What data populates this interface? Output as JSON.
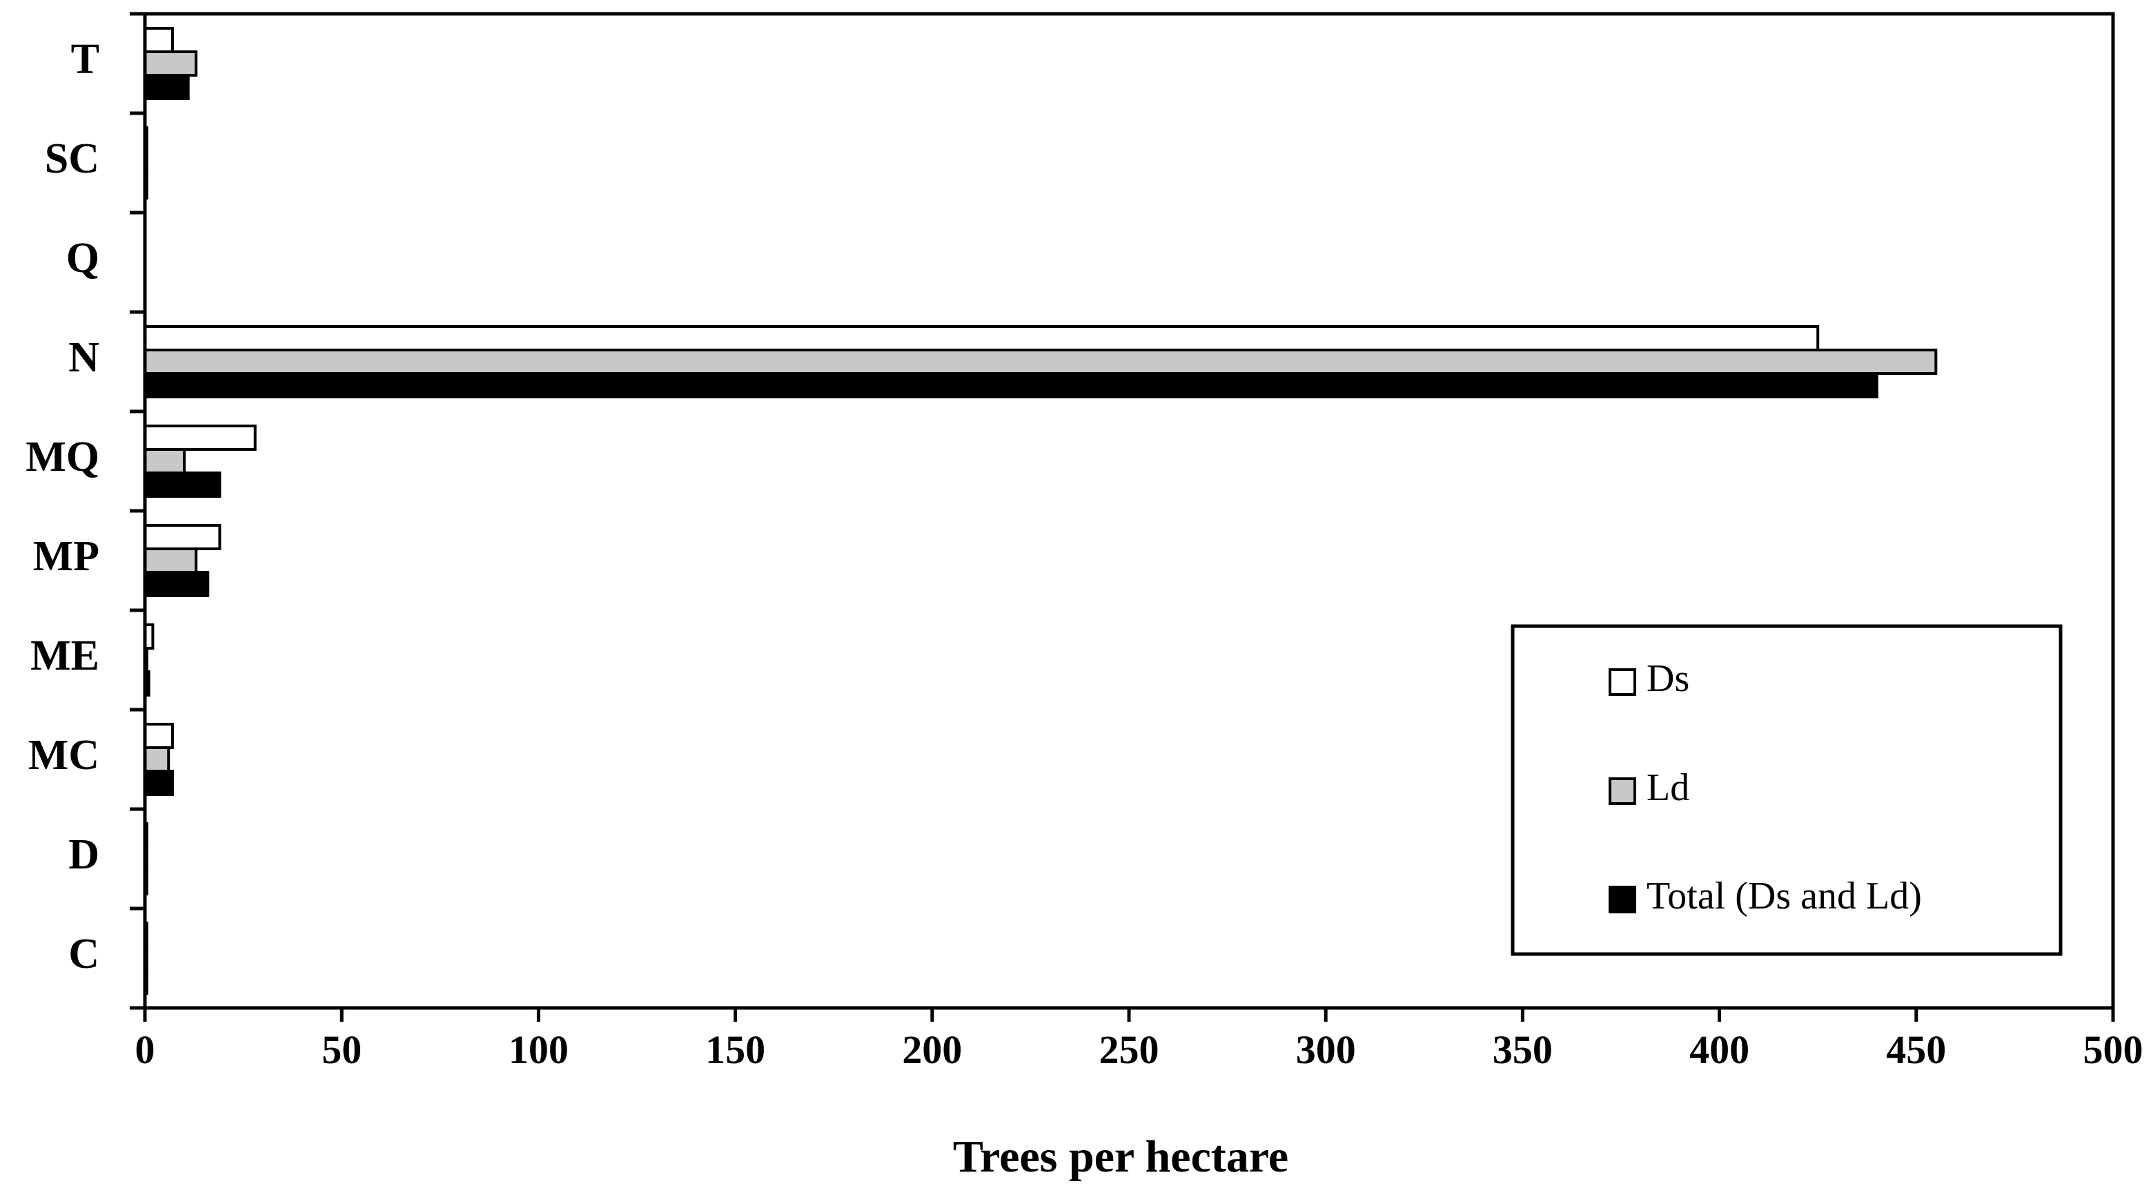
{
  "chart_data": {
    "type": "bar",
    "orientation": "horizontal",
    "categories": [
      "T",
      "SC",
      "Q",
      "N",
      "MQ",
      "MP",
      "ME",
      "MC",
      "D",
      "C"
    ],
    "series": [
      {
        "name": "Ds",
        "color": "#ffffff",
        "values": [
          7,
          0.5,
          0,
          425,
          28,
          19,
          2,
          7,
          0.5,
          0.5
        ]
      },
      {
        "name": "Ld",
        "color": "#c8c8c8",
        "values": [
          13,
          0.5,
          0,
          455,
          10,
          13,
          0.5,
          6,
          0.5,
          0.5
        ]
      },
      {
        "name": "Total (Ds and Ld)",
        "color": "#000000",
        "values": [
          11,
          0.5,
          0,
          440,
          19,
          16,
          1,
          7,
          0.5,
          0.5
        ]
      }
    ],
    "xlabel": "Trees per hectare",
    "ylabel": "",
    "xlim": [
      0,
      500
    ],
    "xticks": [
      0,
      50,
      100,
      150,
      200,
      250,
      300,
      350,
      400,
      450,
      500
    ],
    "grid": false,
    "legend_position": "bottom-right"
  }
}
